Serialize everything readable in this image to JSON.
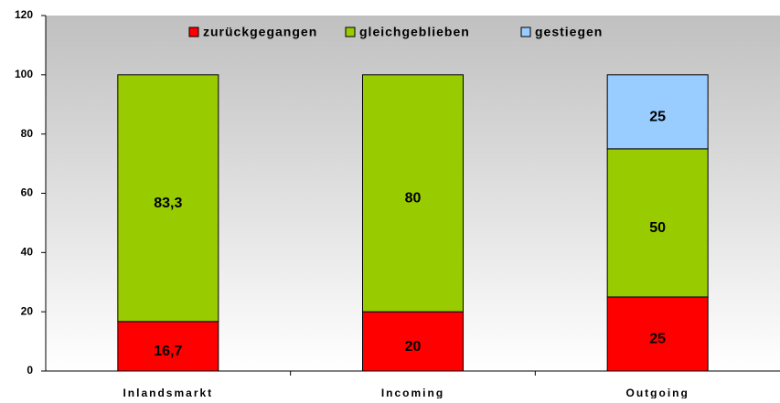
{
  "chart_data": {
    "type": "stacked_bar",
    "categories": [
      "Inlandsmarkt",
      "Incoming",
      "Outgoing"
    ],
    "series": [
      {
        "name": "zurückgegangen",
        "color": "#ff0000",
        "values": [
          16.7,
          20,
          25
        ],
        "value_labels": [
          "16,7",
          "20",
          "25"
        ]
      },
      {
        "name": "gleichgeblieben",
        "color": "#99cc00",
        "values": [
          83.3,
          80,
          50
        ],
        "value_labels": [
          "83,3",
          "80",
          "50"
        ]
      },
      {
        "name": "gestiegen",
        "color": "#99ccff",
        "values": [
          null,
          null,
          25
        ],
        "value_labels": [
          null,
          null,
          "25"
        ]
      }
    ],
    "ylim": [
      0,
      120
    ],
    "yticks": [
      0,
      20,
      40,
      60,
      80,
      100,
      120
    ],
    "legend": "top"
  }
}
